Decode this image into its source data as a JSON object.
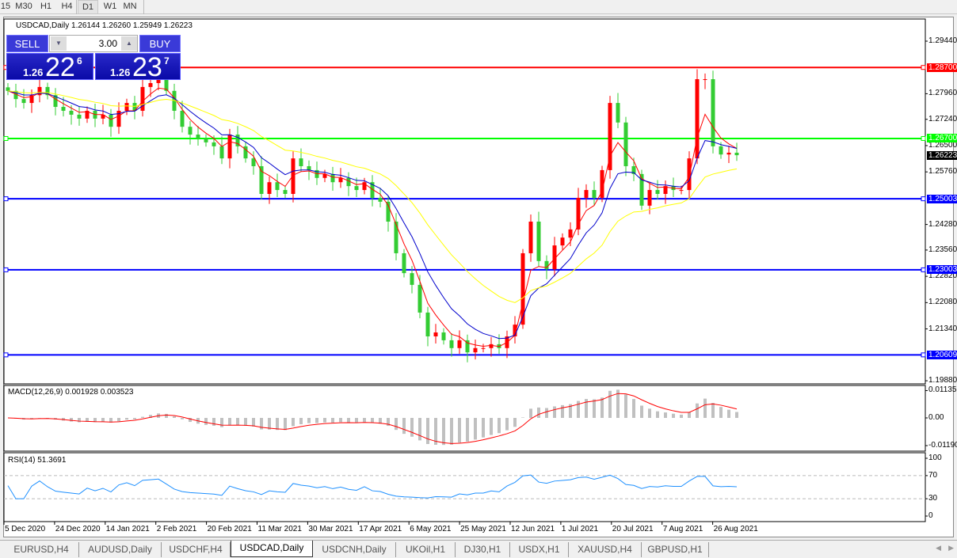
{
  "toolbar": {
    "timeframes": [
      "15",
      "M30",
      "H1",
      "H4",
      "D1",
      "W1",
      "MN"
    ],
    "selected": "D1"
  },
  "chart": {
    "header": "USDCAD,Daily  1.26144 1.26260 1.25949 1.26223",
    "symbol": "USDCAD",
    "timeframe": "Daily",
    "ohlc": {
      "open": "1.26144",
      "high": "1.26260",
      "low": "1.25949",
      "close": "1.26223"
    },
    "current_price": "1.26223",
    "price_ticks": [
      "1.29440",
      "1.27960",
      "1.27240",
      "1.26500",
      "1.25760",
      "1.24280",
      "1.23560",
      "1.22820",
      "1.22080",
      "1.21340",
      "1.19880"
    ],
    "levels": [
      {
        "label": "1.28700",
        "price": 1.287,
        "color": "#ff0000"
      },
      {
        "label": "1.26700",
        "price": 1.267,
        "color": "#00ff00"
      },
      {
        "label": "1.25003",
        "price": 1.25003,
        "color": "#0000ff"
      },
      {
        "label": "1.23003",
        "price": 1.23003,
        "color": "#0000ff"
      },
      {
        "label": "1.20609",
        "price": 1.20609,
        "color": "#0000ff"
      }
    ],
    "colors": {
      "bull": "#ff0000",
      "bear": "#33cc33",
      "ma_fast": "#ff0000",
      "ma_mid": "#0000cc",
      "ma_slow": "#ffff00"
    },
    "closes": [
      1.2804,
      1.2781,
      1.277,
      1.2792,
      1.2815,
      1.2792,
      1.2759,
      1.2748,
      1.2737,
      1.2726,
      1.2748,
      1.2726,
      1.2737,
      1.2703,
      1.2748,
      1.277,
      1.2748,
      1.2815,
      1.2826,
      1.2837,
      1.2804,
      1.2748,
      1.2703,
      1.2681,
      1.267,
      1.2659,
      1.2648,
      1.2614,
      1.2681,
      1.2648,
      1.2614,
      1.2592,
      1.2514,
      1.2547,
      1.2525,
      1.2514,
      1.2614,
      1.2592,
      1.2581,
      1.2559,
      1.257,
      1.2547,
      1.2559,
      1.2536,
      1.2525,
      1.2547,
      1.2503,
      1.2492,
      1.2436,
      1.2347,
      1.2291,
      1.2258,
      1.218,
      1.2113,
      1.2124,
      1.2102,
      1.208,
      1.2102,
      1.2068,
      1.208,
      1.208,
      1.2091,
      1.208,
      1.2113,
      1.2146,
      1.2347,
      1.2436,
      1.2325,
      1.2302,
      1.2369,
      1.2391,
      1.2414,
      1.2503,
      1.2525,
      1.2503,
      1.2581,
      1.277,
      1.2715,
      1.2592,
      1.257,
      1.2481,
      1.2525,
      1.2514,
      1.2536,
      1.2525,
      1.2525,
      1.2614,
      1.2837,
      1.2837,
      1.2648,
      1.2625,
      1.263,
      1.2623
    ]
  },
  "trade": {
    "sell_label": "SELL",
    "buy_label": "BUY",
    "lot": "3.00",
    "sell": {
      "prefix": "1.26",
      "big": "22",
      "sup": "6"
    },
    "buy": {
      "prefix": "1.26",
      "big": "23",
      "sup": "7"
    }
  },
  "macd": {
    "label": "MACD(12,26,9) 0.001928 0.003523",
    "ticks": [
      "0.01135",
      "0.00",
      "-0.01190"
    ]
  },
  "rsi": {
    "label": "RSI(14) 51.3691",
    "ticks": [
      "100",
      "70",
      "30",
      "0"
    ]
  },
  "dates": [
    "5 Dec 2020",
    "24 Dec 2020",
    "14 Jan 2021",
    "2 Feb 2021",
    "20 Feb 2021",
    "11 Mar 2021",
    "30 Mar 2021",
    "17 Apr 2021",
    "6 May 2021",
    "25 May 2021",
    "12 Jun 2021",
    "1 Jul 2021",
    "20 Jul 2021",
    "7 Aug 2021",
    "26 Aug 2021"
  ],
  "tabs": [
    "EURUSD,H4",
    "AUDUSD,Daily",
    "USDCHF,H4",
    "USDCAD,Daily",
    "USDCNH,Daily",
    "UKOil,H1",
    "DJ30,H1",
    "USDX,H1",
    "XAUUSD,H4",
    "GBPUSD,H1"
  ],
  "active_tab": "USDCAD,Daily"
}
